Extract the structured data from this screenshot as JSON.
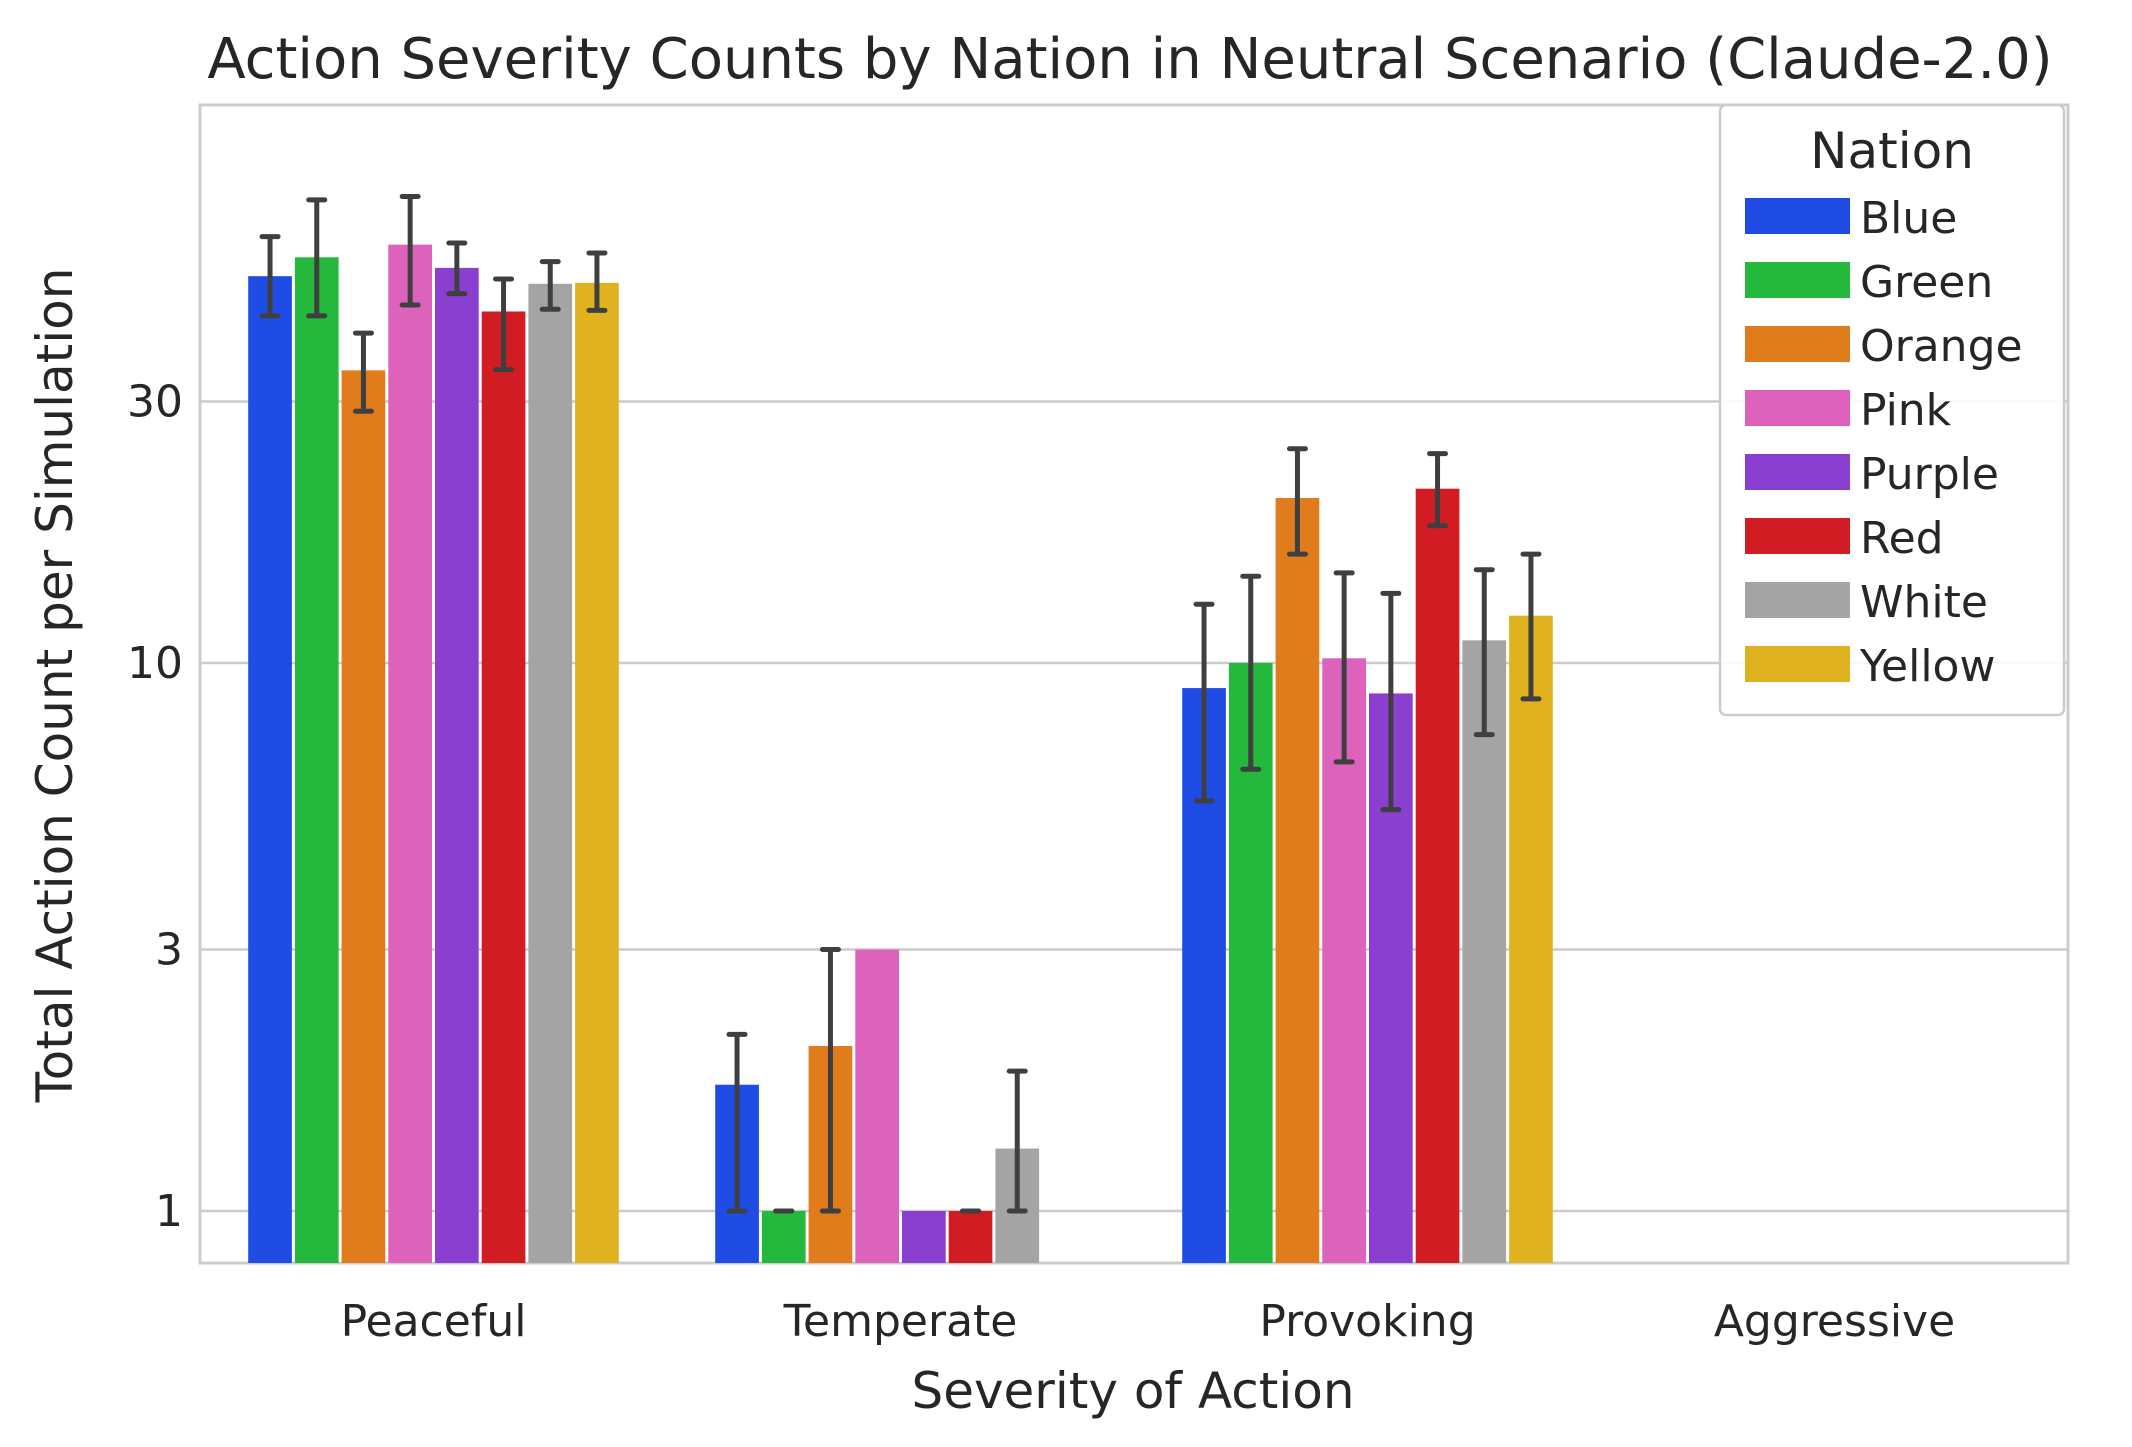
{
  "chart_data": {
    "type": "bar",
    "title": "Action Severity Counts by Nation in Neutral Scenario (Claude-2.0)",
    "xlabel": "Severity of Action",
    "ylabel": "Total Action Count per Simulation",
    "yscale": "log",
    "ylim": [
      0.8,
      90
    ],
    "yticks": [
      1,
      3,
      10,
      30
    ],
    "ytick_labels": [
      "1",
      "3",
      "10",
      "30"
    ],
    "grid": "horizontal",
    "legend_title": "Nation",
    "legend_position": "top-right",
    "categories": [
      "Peaceful",
      "Temperate",
      "Provoking",
      "Aggressive"
    ],
    "series": [
      {
        "name": "Blue",
        "color": "#1f4ce5",
        "values": [
          50.8,
          1.7,
          9.0,
          null
        ],
        "err_low": [
          43,
          1.0,
          5.6,
          null
        ],
        "err_high": [
          60,
          2.1,
          12.8,
          null
        ]
      },
      {
        "name": "Green",
        "color": "#24b83c",
        "values": [
          55,
          1.0,
          10.0,
          null
        ],
        "err_low": [
          43,
          1.0,
          6.4,
          null
        ],
        "err_high": [
          70,
          1.0,
          14.4,
          null
        ]
      },
      {
        "name": "Orange",
        "color": "#e07c1c",
        "values": [
          34.2,
          2.0,
          20.0,
          null
        ],
        "err_low": [
          28.8,
          1.0,
          15.8,
          null
        ],
        "err_high": [
          40,
          3.0,
          24.6,
          null
        ]
      },
      {
        "name": "Pink",
        "color": "#dc62bb",
        "values": [
          58,
          3.0,
          10.2,
          null
        ],
        "err_low": [
          45,
          null,
          6.6,
          null
        ],
        "err_high": [
          71,
          null,
          14.6,
          null
        ]
      },
      {
        "name": "Purple",
        "color": "#8a3fd0",
        "values": [
          52.6,
          1.0,
          8.8,
          null
        ],
        "err_low": [
          47.2,
          null,
          5.4,
          null
        ],
        "err_high": [
          58.4,
          null,
          13.4,
          null
        ]
      },
      {
        "name": "Red",
        "color": "#d21c23",
        "values": [
          43.8,
          1.0,
          20.8,
          null
        ],
        "err_low": [
          34.3,
          1.0,
          17.8,
          null
        ],
        "err_high": [
          50.2,
          1.0,
          24.1,
          null
        ]
      },
      {
        "name": "White",
        "color": "#a4a4a4",
        "values": [
          49.2,
          1.3,
          11.0,
          null
        ],
        "err_low": [
          44.2,
          1.0,
          7.4,
          null
        ],
        "err_high": [
          54.0,
          1.8,
          14.8,
          null
        ]
      },
      {
        "name": "Yellow",
        "color": "#e1b220",
        "values": [
          49.4,
          null,
          12.2,
          null
        ],
        "err_low": [
          44.0,
          null,
          8.6,
          null
        ],
        "err_high": [
          56.0,
          null,
          15.8,
          null
        ]
      }
    ]
  }
}
